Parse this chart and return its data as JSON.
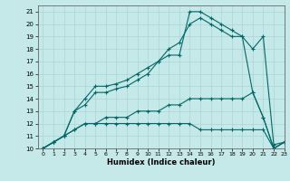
{
  "xlabel": "Humidex (Indice chaleur)",
  "xlim": [
    -0.5,
    23
  ],
  "ylim": [
    10,
    21.5
  ],
  "xticks": [
    0,
    1,
    2,
    3,
    4,
    5,
    6,
    7,
    8,
    9,
    10,
    11,
    12,
    13,
    14,
    15,
    16,
    17,
    18,
    19,
    20,
    21,
    22,
    23
  ],
  "yticks": [
    10,
    11,
    12,
    13,
    14,
    15,
    16,
    17,
    18,
    19,
    20,
    21
  ],
  "bg_color": "#c5e8e8",
  "grid_color": "#aad4d4",
  "line_color": "#006868",
  "curves": [
    {
      "x": [
        0,
        1,
        2,
        3,
        4,
        5,
        6,
        7,
        8,
        9,
        10,
        11,
        12,
        13,
        14,
        15,
        16,
        17,
        18,
        19,
        20,
        21,
        22,
        23
      ],
      "y": [
        10,
        10.5,
        11,
        13,
        14,
        15,
        15,
        15.2,
        15.5,
        16,
        16.5,
        17,
        17.5,
        17.5,
        21,
        21,
        20.5,
        20,
        19.5,
        19,
        18,
        19,
        10.3,
        10.5
      ]
    },
    {
      "x": [
        0,
        1,
        2,
        3,
        4,
        5,
        6,
        7,
        8,
        9,
        10,
        11,
        12,
        13,
        14,
        15,
        16,
        17,
        18,
        19,
        20,
        21,
        22,
        23
      ],
      "y": [
        10,
        10.5,
        11,
        13,
        13.5,
        14.5,
        14.5,
        14.8,
        15,
        15.5,
        16,
        17,
        18,
        18.5,
        20,
        20.5,
        20,
        19.5,
        19,
        19,
        14.5,
        12.5,
        10,
        10.5
      ]
    },
    {
      "x": [
        0,
        1,
        2,
        3,
        4,
        5,
        6,
        7,
        8,
        9,
        10,
        11,
        12,
        13,
        14,
        15,
        16,
        17,
        18,
        19,
        20,
        21,
        22,
        23
      ],
      "y": [
        10,
        10.5,
        11,
        11.5,
        12,
        12,
        12.5,
        12.5,
        12.5,
        13,
        13,
        13,
        13.5,
        13.5,
        14,
        14,
        14,
        14,
        14,
        14,
        14.5,
        12.5,
        10,
        10.5
      ]
    },
    {
      "x": [
        0,
        1,
        2,
        3,
        4,
        5,
        6,
        7,
        8,
        9,
        10,
        11,
        12,
        13,
        14,
        15,
        16,
        17,
        18,
        19,
        20,
        21,
        22,
        23
      ],
      "y": [
        10,
        10.5,
        11,
        11.5,
        12,
        12,
        12,
        12,
        12,
        12,
        12,
        12,
        12,
        12,
        12,
        11.5,
        11.5,
        11.5,
        11.5,
        11.5,
        11.5,
        11.5,
        10,
        10.5
      ]
    }
  ]
}
